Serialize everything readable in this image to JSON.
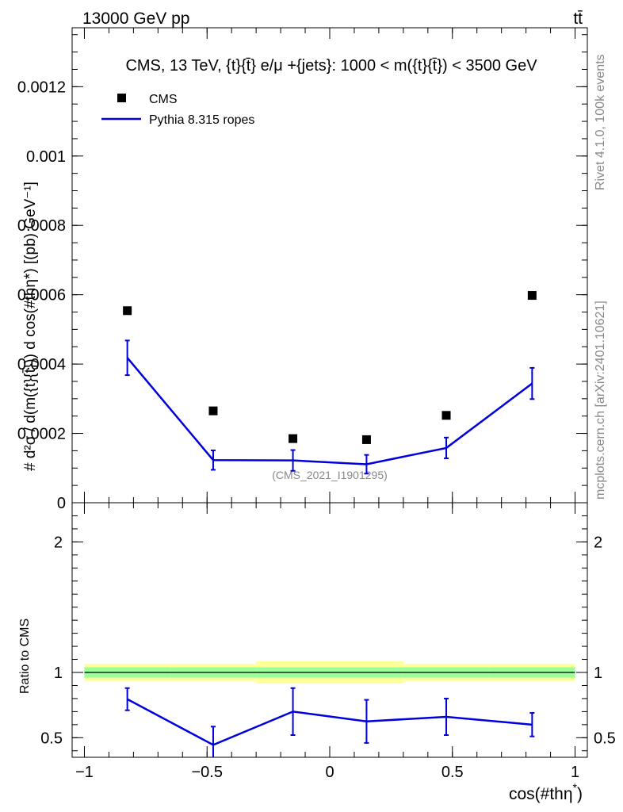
{
  "header": {
    "left": "13000 GeV pp",
    "right": "tt̄"
  },
  "side_labels": {
    "rivet": "Rivet 4.1.0,  100k events",
    "mcplots": "mcplots.cern.ch [arXiv:2401.10621]"
  },
  "chart_data": {
    "type": "line",
    "title": "CMS, 13 TeV, {t}{t̄} e/μ +{jets}: 1000 < m({t}{t̄}) < 3500 GeV",
    "watermark": "(CMS_2021_I1901295)",
    "xlabel": "cos(#thη",
    "xlabel_sup": "*",
    "xlabel_close": ")",
    "ylabel_top": "# d²σ / d(m({t}{t̄})) d cos(#thη*) [(pb) GeV⁻¹]",
    "ylabel_ratio": "Ratio to CMS",
    "legend": [
      {
        "name": "CMS",
        "marker": "square",
        "color": "#000000"
      },
      {
        "name": "Pythia 8.315 ropes",
        "marker": "line",
        "color": "#0000dd"
      }
    ],
    "xlim": [
      -1.05,
      1.05
    ],
    "ylim_main": [
      0,
      0.00137
    ],
    "ylim_ratio": [
      0.35,
      2.3
    ],
    "x_ticks": [
      "−1",
      "−0.5",
      "0",
      "0.5",
      "1"
    ],
    "x_tick_values": [
      -1,
      -0.5,
      0,
      0.5,
      1
    ],
    "y_ticks_main": [
      "0",
      "0.0002",
      "0.0004",
      "0.0006",
      "0.0008",
      "0.001",
      "0.0012"
    ],
    "y_tick_values_main": [
      0,
      0.0002,
      0.0004,
      0.0006,
      0.0008,
      0.001,
      0.0012
    ],
    "y_ticks_ratio": [
      "0.5",
      "1",
      "2"
    ],
    "y_tick_values_ratio": [
      0.5,
      1,
      2
    ],
    "bin_edges": [
      -1,
      -0.65,
      -0.3,
      0,
      0.3,
      0.65,
      1
    ],
    "data_x": [
      -0.825,
      -0.475,
      -0.15,
      0.15,
      0.475,
      0.825
    ],
    "cms_values": [
      0.000554,
      0.000265,
      0.000185,
      0.000182,
      0.000252,
      0.000598
    ],
    "pythia_values": [
      0.000418,
      0.000123,
      0.000122,
      0.000111,
      0.000158,
      0.000344
    ],
    "pythia_errors": [
      5e-05,
      2.8e-05,
      3e-05,
      2.7e-05,
      3e-05,
      4.5e-05
    ],
    "ratio_values": [
      0.795,
      0.445,
      0.7,
      0.625,
      0.66,
      0.6
    ],
    "ratio_errors": [
      0.085,
      0.14,
      0.18,
      0.165,
      0.14,
      0.09
    ],
    "band_inner": [
      0.04,
      0.04,
      0.04,
      0.04,
      0.04,
      0.04
    ],
    "band_outer": [
      0.065,
      0.065,
      0.085,
      0.085,
      0.065,
      0.065
    ],
    "colors": {
      "cms": "#000000",
      "pythia": "#0000dd",
      "band_inner": "#99ff99",
      "band_outer": "#ffff99",
      "watermark": "#888888"
    }
  }
}
